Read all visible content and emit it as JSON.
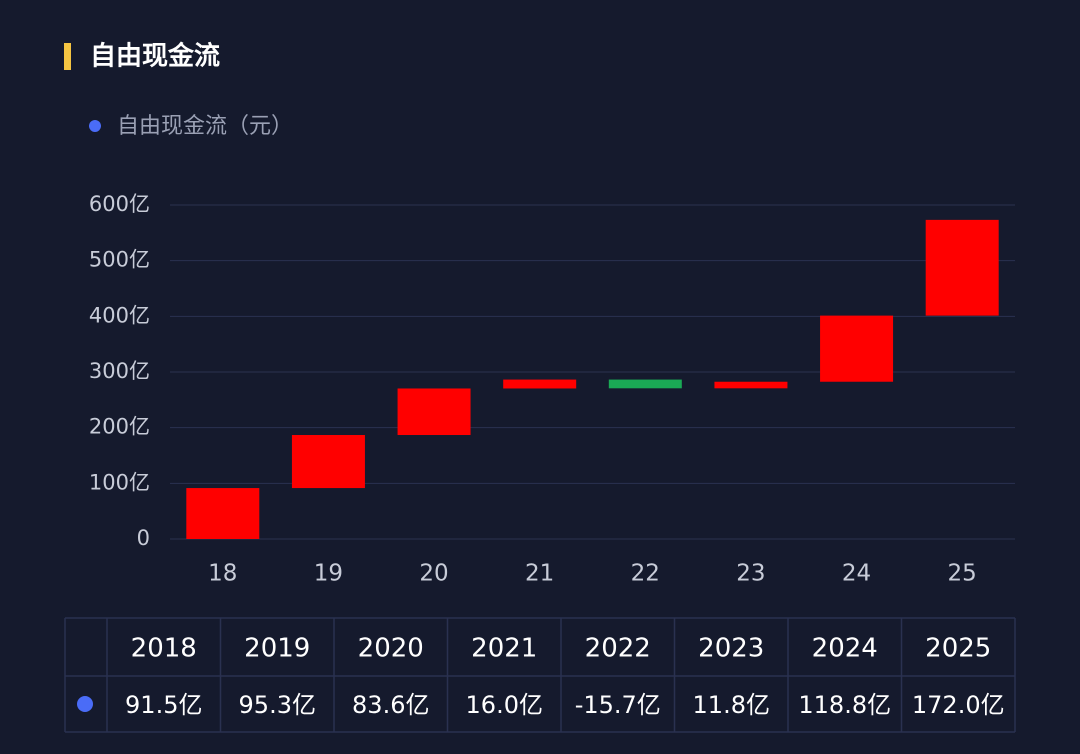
{
  "chart_data": {
    "type": "waterfall",
    "title": "自由现金流",
    "categories": [
      "18",
      "19",
      "20",
      "21",
      "22",
      "23",
      "24",
      "25"
    ],
    "series": [
      {
        "name": "自由现金流（元）",
        "color": "#4a6cf7",
        "values": [
          91.5,
          95.3,
          83.6,
          16.0,
          -15.7,
          11.8,
          118.8,
          172.0
        ],
        "value_labels": [
          "91.5亿",
          "95.3亿",
          "83.6亿",
          "16.0亿",
          "-15.7亿",
          "11.8亿",
          "118.8亿",
          "172.0亿"
        ]
      }
    ],
    "increase_color": "#ff0000",
    "decrease_color": "#1aaa55",
    "ylim": [
      0,
      600
    ],
    "yticks": [
      0,
      {
        "value": 100,
        "label": "100亿"
      },
      {
        "value": 200,
        "label": "200亿"
      },
      {
        "value": 300,
        "label": "300亿"
      },
      {
        "value": 400,
        "label": "400亿"
      },
      {
        "value": 500,
        "label": "500亿"
      },
      {
        "value": 600,
        "label": "600亿"
      }
    ],
    "grid": true,
    "table_header": [
      "2018",
      "2019",
      "2020",
      "2021",
      "2022",
      "2023",
      "2024",
      "2025"
    ]
  }
}
